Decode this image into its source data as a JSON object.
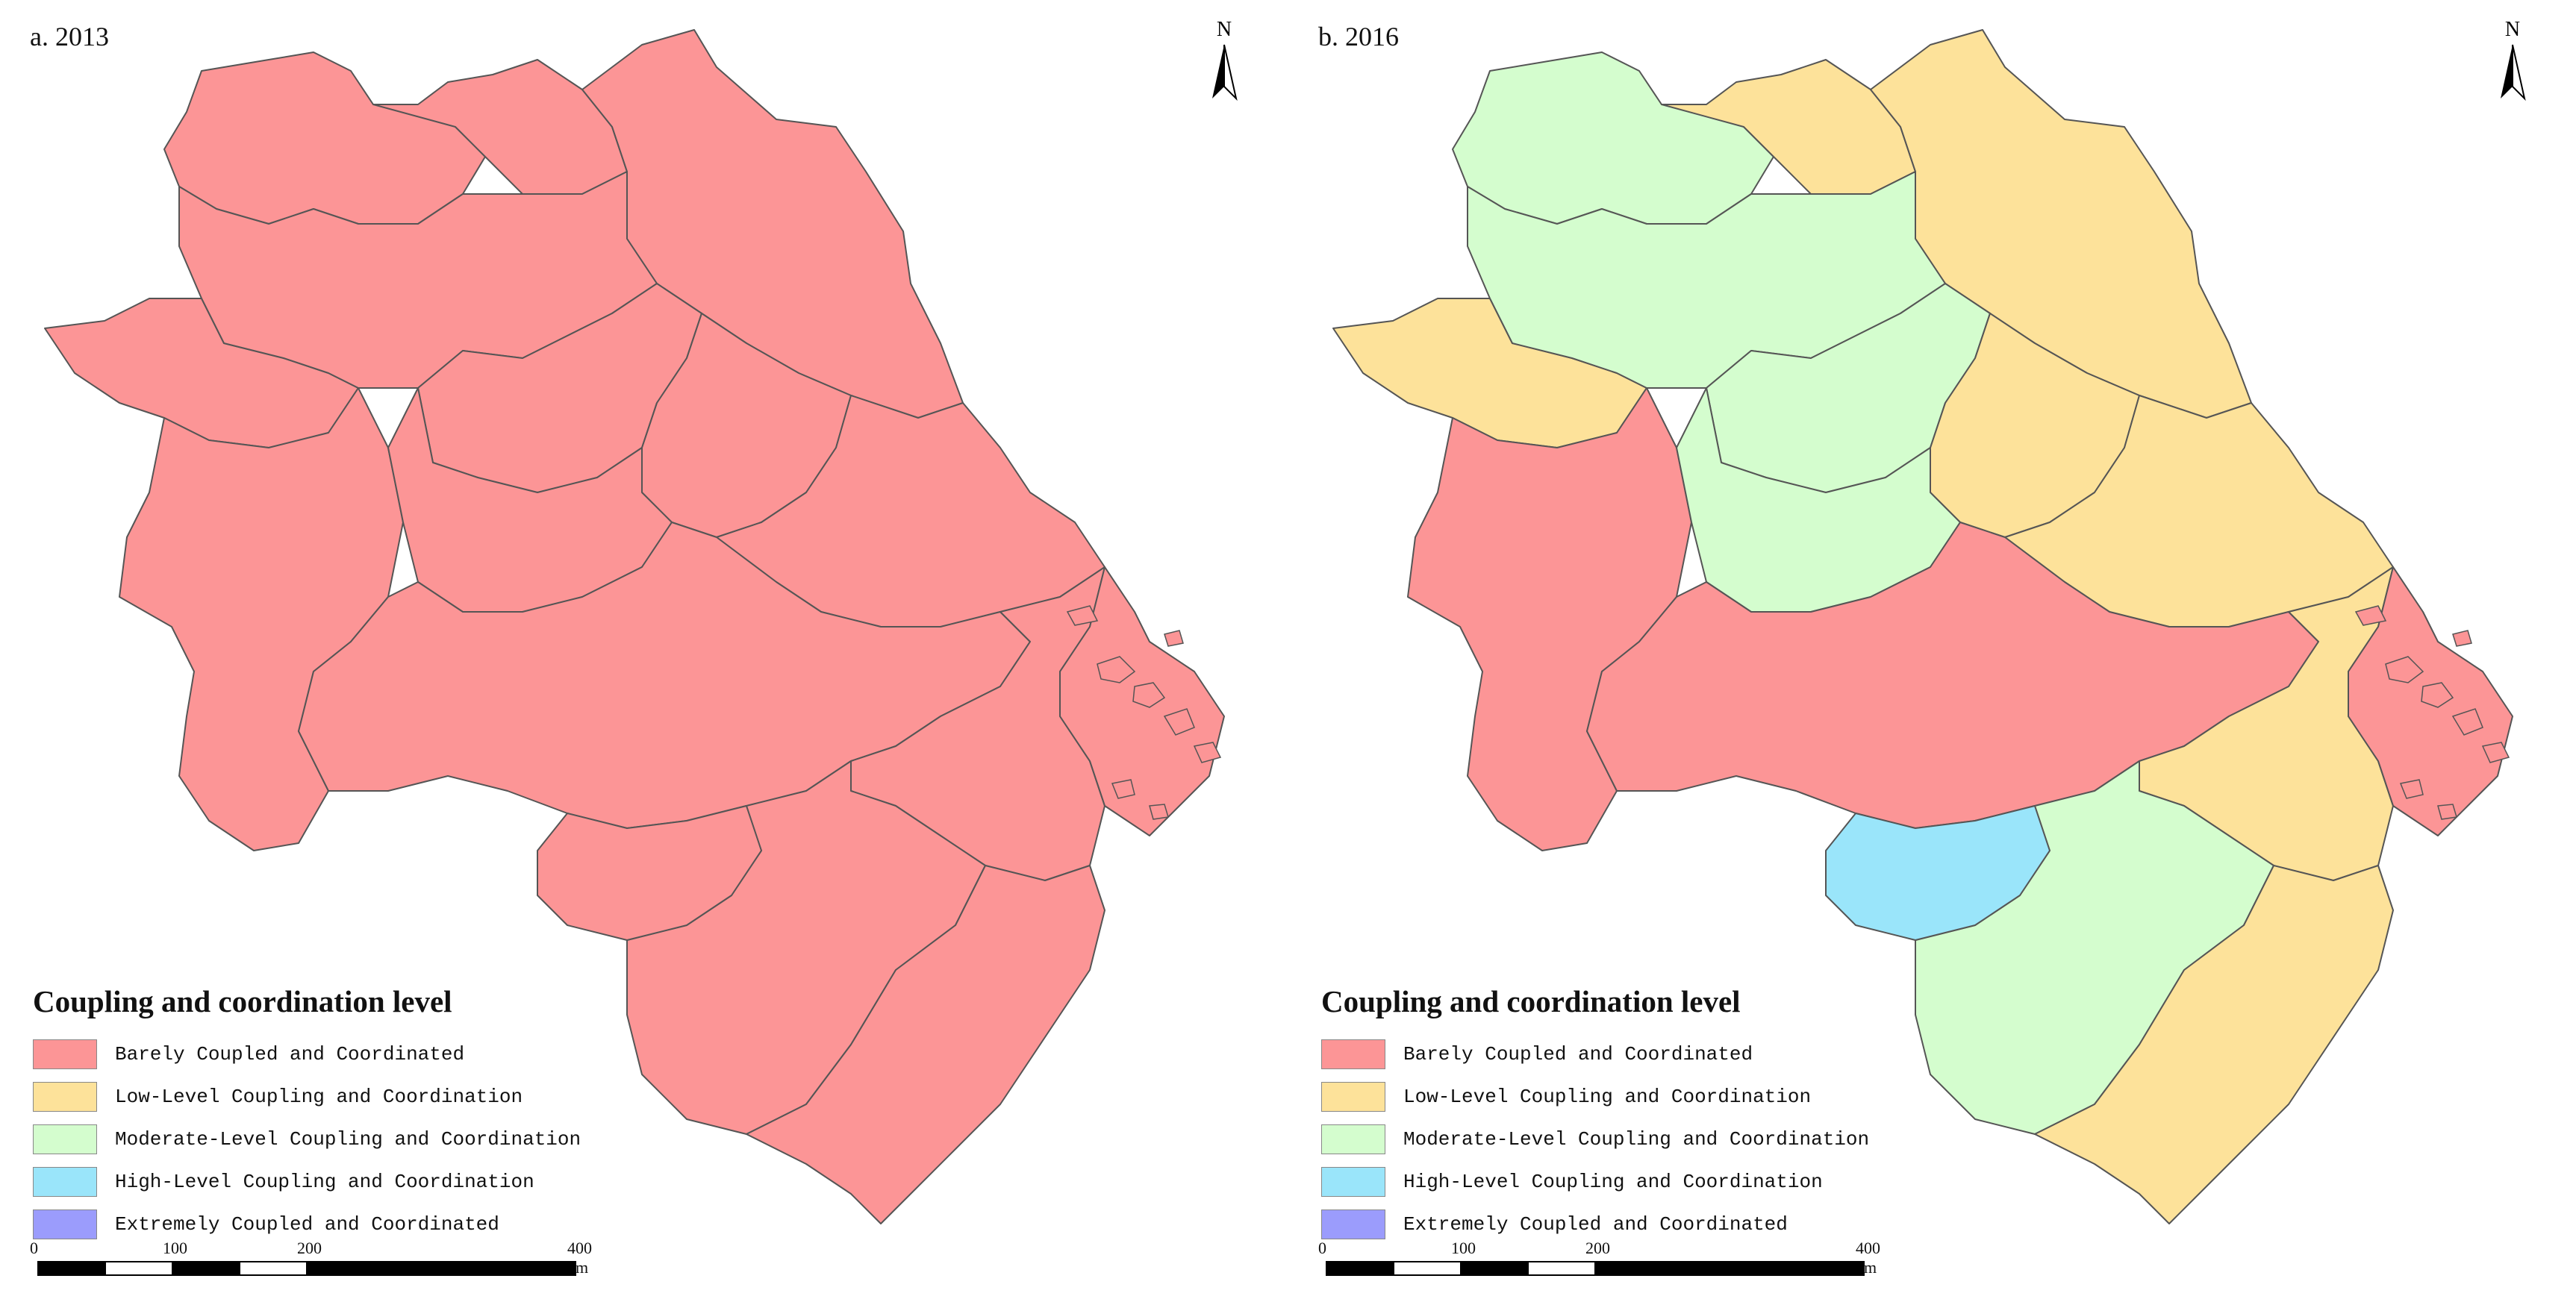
{
  "colors": {
    "barely": "#fc9596",
    "low": "#fde29a",
    "moderate": "#d4fdce",
    "high": "#9ae5fa",
    "extreme": "#9b9cfc",
    "boundary": "#555555"
  },
  "panels": [
    {
      "label": "a. 2013",
      "north_label": "N",
      "regions": [
        {
          "id": "n1",
          "level": "barely"
        },
        {
          "id": "n2",
          "level": "barely"
        },
        {
          "id": "n3",
          "level": "barely"
        },
        {
          "id": "w1",
          "level": "barely"
        },
        {
          "id": "w2",
          "level": "barely"
        },
        {
          "id": "sw",
          "level": "barely"
        },
        {
          "id": "c1",
          "level": "barely"
        },
        {
          "id": "c2",
          "level": "barely"
        },
        {
          "id": "c3",
          "level": "barely"
        },
        {
          "id": "c4",
          "level": "barely"
        },
        {
          "id": "s1",
          "level": "barely"
        },
        {
          "id": "s2",
          "level": "barely"
        },
        {
          "id": "se1",
          "level": "barely"
        },
        {
          "id": "s3",
          "level": "barely"
        },
        {
          "id": "s4",
          "level": "barely"
        },
        {
          "id": "sw2",
          "level": "barely"
        }
      ]
    },
    {
      "label": "b. 2016",
      "north_label": "N",
      "regions": [
        {
          "id": "n1",
          "level": "moderate"
        },
        {
          "id": "n2",
          "level": "low"
        },
        {
          "id": "n3",
          "level": "low"
        },
        {
          "id": "w1",
          "level": "low"
        },
        {
          "id": "w2",
          "level": "moderate"
        },
        {
          "id": "sw",
          "level": "barely"
        },
        {
          "id": "c1",
          "level": "moderate"
        },
        {
          "id": "c2",
          "level": "low"
        },
        {
          "id": "c3",
          "level": "moderate"
        },
        {
          "id": "c4",
          "level": "low"
        },
        {
          "id": "s1",
          "level": "barely"
        },
        {
          "id": "s2",
          "level": "low"
        },
        {
          "id": "se1",
          "level": "barely"
        },
        {
          "id": "s3",
          "level": "moderate"
        },
        {
          "id": "s4",
          "level": "low"
        },
        {
          "id": "sw2",
          "level": "high"
        }
      ]
    }
  ],
  "legend": {
    "title": "Coupling and coordination level",
    "items": [
      {
        "key": "barely",
        "label": "Barely Coupled and Coordinated"
      },
      {
        "key": "low",
        "label": "Low-Level Coupling and Coordination"
      },
      {
        "key": "moderate",
        "label": "Moderate-Level Coupling and Coordination"
      },
      {
        "key": "high",
        "label": "High-Level Coupling and Coordination"
      },
      {
        "key": "extreme",
        "label": "Extremely Coupled and Coordinated"
      }
    ]
  },
  "scale": {
    "ticks": [
      "0",
      "100",
      "200",
      "400 km"
    ]
  }
}
